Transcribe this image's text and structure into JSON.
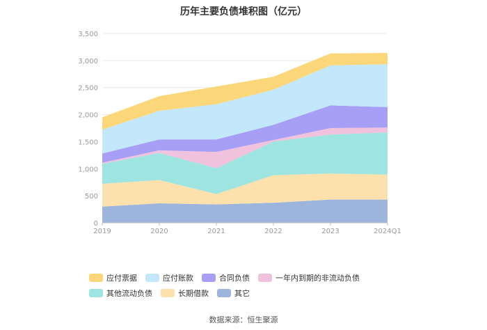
{
  "chart_data": {
    "type": "area",
    "title": "历年主要负债堆积图（亿元）",
    "categories": [
      "2019",
      "2020",
      "2021",
      "2022",
      "2023",
      "2024Q1"
    ],
    "ylim": [
      0,
      3500
    ],
    "yticks": [
      0,
      500,
      1000,
      1500,
      2000,
      2500,
      3000,
      3500
    ],
    "ytick_labels": [
      "0",
      "500",
      "1,000",
      "1,500",
      "2,000",
      "2,500",
      "3,000",
      "3,500"
    ],
    "grid": true,
    "legend_position": "bottom",
    "series": [
      {
        "name": "其它",
        "color": "#9db4dc",
        "values": [
          300,
          360,
          340,
          370,
          430,
          430
        ]
      },
      {
        "name": "长期借款",
        "color": "#fde1ad",
        "values": [
          420,
          430,
          190,
          510,
          480,
          460
        ]
      },
      {
        "name": "其他流动负债",
        "color": "#9ee4e0",
        "values": [
          370,
          500,
          480,
          620,
          720,
          780
        ]
      },
      {
        "name": "一年内到期的非流动负债",
        "color": "#f1c2dd",
        "values": [
          20,
          50,
          300,
          30,
          120,
          90
        ]
      },
      {
        "name": "合同负债",
        "color": "#a79ef5",
        "values": [
          170,
          200,
          230,
          280,
          420,
          380
        ]
      },
      {
        "name": "应付账款",
        "color": "#c3e7fb",
        "values": [
          440,
          530,
          650,
          650,
          740,
          790
        ]
      },
      {
        "name": "应付票据",
        "color": "#fcd77a",
        "values": [
          230,
          270,
          330,
          240,
          220,
          210
        ]
      }
    ],
    "legend_order": [
      "应付票据",
      "应付账款",
      "合同负债",
      "一年内到期的非流动负债",
      "其他流动负债",
      "长期借款",
      "其它"
    ]
  },
  "source_text": "数据来源：恒生聚源"
}
